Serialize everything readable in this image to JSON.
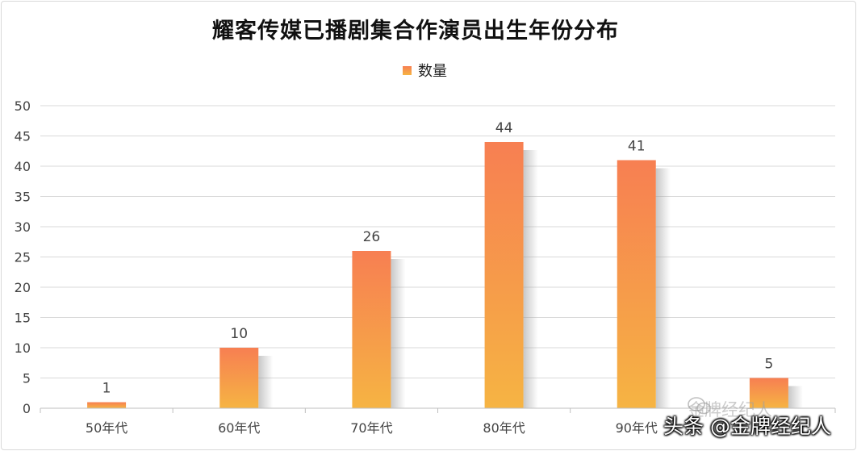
{
  "chart_data": {
    "type": "bar",
    "title": "耀客传媒已播剧集合作演员出生年份分布",
    "categories": [
      "50年代",
      "60年代",
      "70年代",
      "80年代",
      "90年代",
      ""
    ],
    "series": [
      {
        "name": "数量",
        "values": [
          1,
          10,
          26,
          44,
          41,
          5
        ]
      }
    ],
    "yticks": [
      "0",
      "5",
      "10",
      "15",
      "20",
      "25",
      "30",
      "35",
      "40",
      "45",
      "50"
    ],
    "ylim": [
      0,
      50
    ],
    "grid": true,
    "legend_position": "top-center",
    "colors": {
      "bar_top": "#f77f52",
      "bar_bottom": "#f6b443",
      "grid": "#d9d9d9"
    }
  },
  "watermark": {
    "faint_text": "金牌经纪人",
    "main_text": "头条 @金牌经纪人"
  }
}
